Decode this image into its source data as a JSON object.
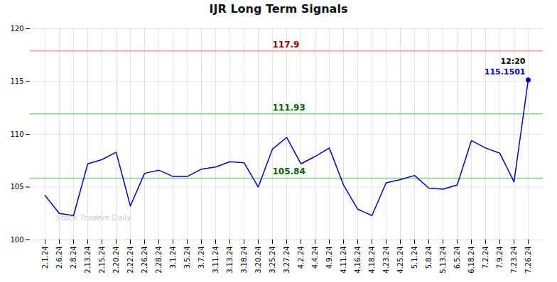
{
  "chart_data": {
    "type": "line",
    "title": "IJR Long Term Signals",
    "categories": [
      "2.1.24",
      "2.6.24",
      "2.8.24",
      "2.13.24",
      "2.15.24",
      "2.20.24",
      "2.22.24",
      "2.26.24",
      "2.28.24",
      "3.1.24",
      "3.5.24",
      "3.7.24",
      "3.11.24",
      "3.13.24",
      "3.18.24",
      "3.20.24",
      "3.25.24",
      "3.27.24",
      "4.2.24",
      "4.4.24",
      "4.9.24",
      "4.11.24",
      "4.16.24",
      "4.18.24",
      "4.23.24",
      "4.25.24",
      "5.1.24",
      "5.8.24",
      "5.13.24",
      "6.5.24",
      "6.18.24",
      "7.2.24",
      "7.9.24",
      "7.23.24",
      "7.26.24"
    ],
    "values": [
      104.2,
      102.5,
      102.3,
      107.2,
      107.6,
      108.3,
      103.2,
      106.3,
      106.6,
      106.0,
      106.0,
      106.7,
      106.9,
      107.4,
      107.3,
      105.0,
      108.6,
      109.7,
      107.2,
      107.9,
      108.7,
      105.2,
      102.9,
      102.3,
      105.4,
      105.7,
      106.1,
      104.9,
      104.8,
      105.2,
      109.4,
      108.7,
      108.2,
      105.5,
      115.1501
    ],
    "color": "#0000cc",
    "ylim": [
      100,
      120
    ],
    "yticks": [
      100,
      105,
      110,
      115,
      120
    ],
    "grid": true,
    "hlines": [
      {
        "value": 117.9,
        "color": "#ffaaaa",
        "label_color": "#990000"
      },
      {
        "value": 111.93,
        "color": "#88cc88",
        "label_color": "#006600"
      },
      {
        "value": 105.84,
        "color": "#88cc88",
        "label_color": "#006600"
      }
    ],
    "annotations": [
      {
        "text": "12:20",
        "color": "#000000"
      },
      {
        "text": "115.1501",
        "color": "#0000cc"
      }
    ],
    "watermark": {
      "text": "Stock Traders Daily",
      "color": "#cccccc"
    }
  }
}
